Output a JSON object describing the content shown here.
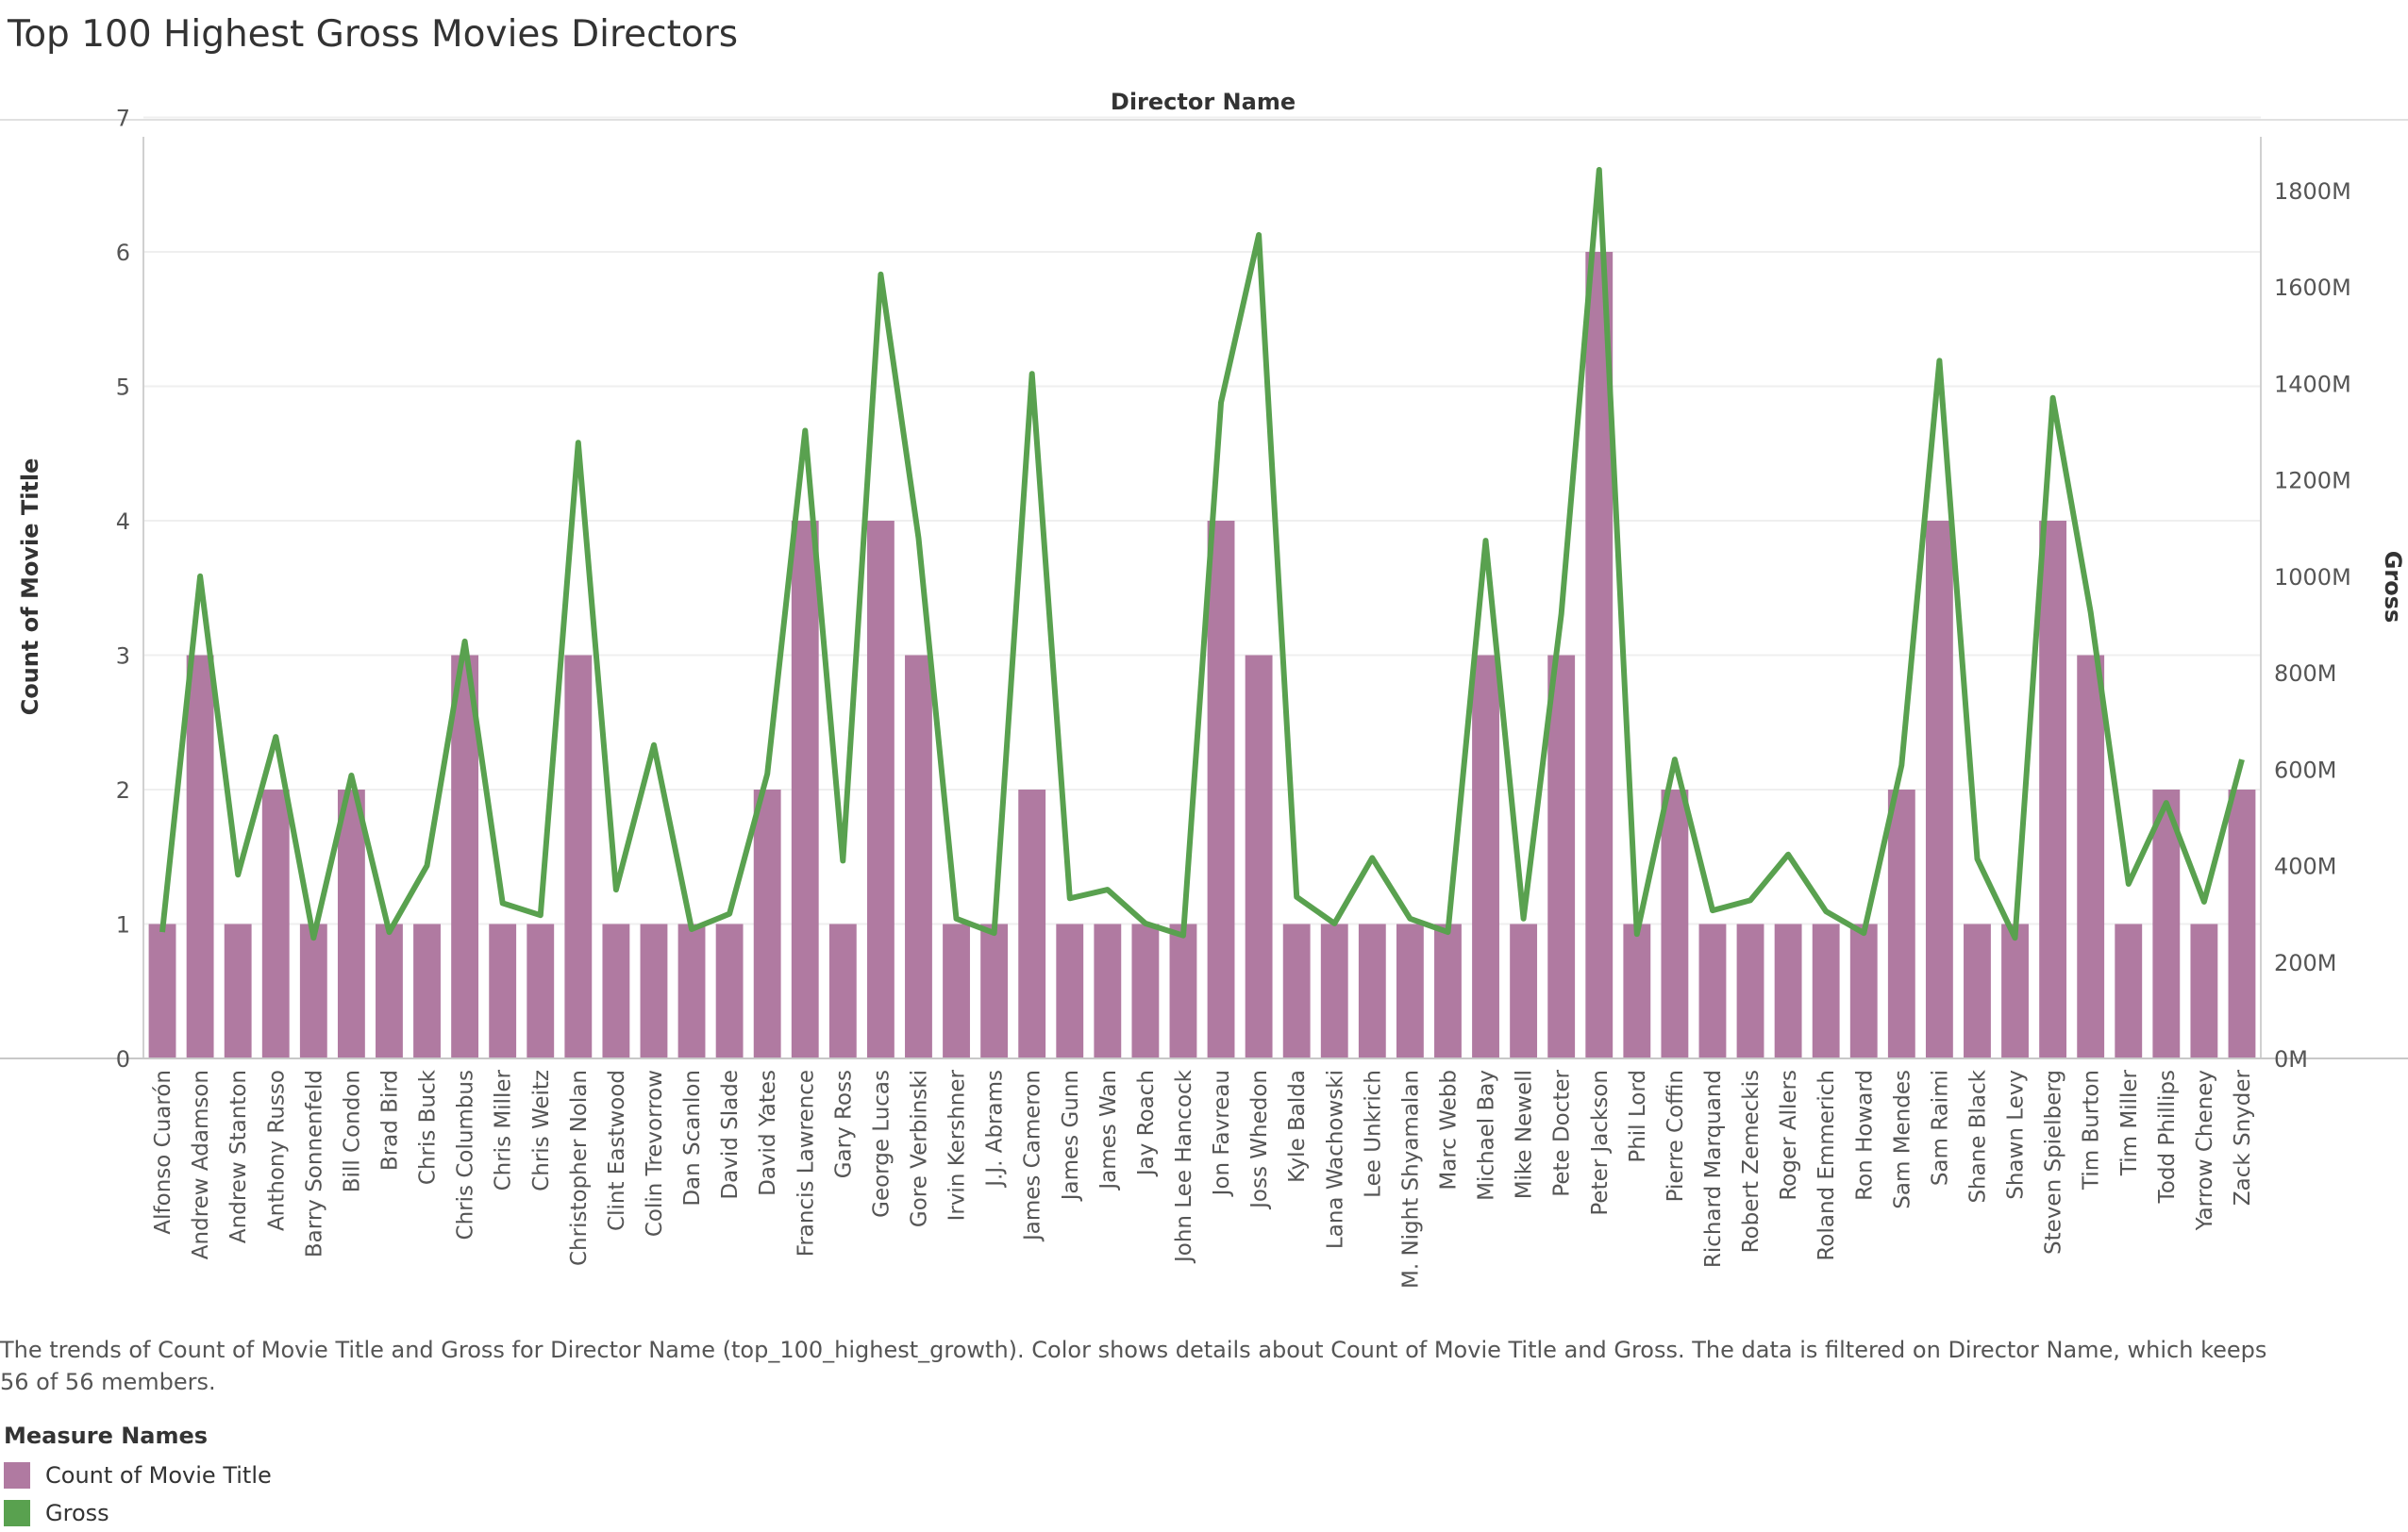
{
  "title": "Top 100 Highest Gross Movies Directors",
  "caption": "The trends of Count of Movie Title and Gross for Director Name (top_100_highest_growth).  Color shows details about Count of Movie Title and Gross. The data is filtered on Director Name, which keeps 56 of 56 members.",
  "legend": {
    "title": "Measure Names",
    "items": [
      {
        "label": "Count of Movie Title",
        "color": "#b07aa1"
      },
      {
        "label": "Gross",
        "color": "#59a14f"
      }
    ]
  },
  "chart_data": {
    "type": "bar",
    "title": "Top 100 Highest Gross Movies Directors",
    "xlabel": "Director Name",
    "ylabel": "Count of Movie Title",
    "y2label": "Gross",
    "ylim": [
      0,
      7
    ],
    "y2lim": [
      0,
      1900
    ],
    "yticks": [
      "0",
      "1",
      "2",
      "3",
      "4",
      "5",
      "6",
      "7"
    ],
    "y2ticks": [
      "0M",
      "200M",
      "400M",
      "600M",
      "800M",
      "1000M",
      "1200M",
      "1400M",
      "1600M",
      "1800M"
    ],
    "y2tick_values": [
      0,
      200,
      400,
      600,
      800,
      1000,
      1200,
      1400,
      1600,
      1800
    ],
    "grid": true,
    "legend_position": "bottom-left",
    "categories": [
      "Alfonso Cuarón",
      "Andrew Adamson",
      "Andrew Stanton",
      "Anthony Russo",
      "Barry Sonnenfeld",
      "Bill Condon",
      "Brad Bird",
      "Chris Buck",
      "Chris Columbus",
      "Chris Miller",
      "Chris Weitz",
      "Christopher Nolan",
      "Clint Eastwood",
      "Colin Trevorrow",
      "Dan Scanlon",
      "David Slade",
      "David Yates",
      "Francis Lawrence",
      "Gary Ross",
      "George Lucas",
      "Gore Verbinski",
      "Irvin Kershner",
      "J.J. Abrams",
      "James Cameron",
      "James Gunn",
      "James Wan",
      "Jay Roach",
      "John Lee Hancock",
      "Jon Favreau",
      "Joss Whedon",
      "Kyle Balda",
      "Lana Wachowski",
      "Lee Unkrich",
      "M. Night Shyamalan",
      "Marc Webb",
      "Michael Bay",
      "Mike Newell",
      "Pete Docter",
      "Peter Jackson",
      "Phil Lord",
      "Pierre Coffin",
      "Richard Marquand",
      "Robert Zemeckis",
      "Roger Allers",
      "Roland Emmerich",
      "Ron Howard",
      "Sam Mendes",
      "Sam Raimi",
      "Shane Black",
      "Shawn Levy",
      "Steven Spielberg",
      "Tim Burton",
      "Tim Miller",
      "Todd Phillips",
      "Yarrow Cheney",
      "Zack Snyder"
    ],
    "series": [
      {
        "name": "Count of Movie Title",
        "axis": "left",
        "type": "bar",
        "color": "#b07aa1",
        "values": [
          1,
          3,
          1,
          2,
          1,
          2,
          1,
          1,
          3,
          1,
          1,
          3,
          1,
          1,
          1,
          1,
          2,
          4,
          1,
          4,
          3,
          1,
          1,
          2,
          1,
          1,
          1,
          1,
          4,
          3,
          1,
          1,
          1,
          1,
          1,
          3,
          1,
          3,
          6,
          1,
          2,
          1,
          1,
          1,
          1,
          1,
          2,
          4,
          1,
          1,
          4,
          3,
          1,
          2,
          1,
          2
        ]
      },
      {
        "name": "Gross",
        "axis": "right",
        "type": "line",
        "color": "#59a14f",
        "values": [
          262,
          1000,
          381,
          667,
          250,
          587,
          262,
          400,
          865,
          322,
          297,
          1277,
          350,
          650,
          268,
          300,
          590,
          1302,
          410,
          1626,
          1079,
          290,
          260,
          1420,
          332,
          350,
          280,
          255,
          1360,
          1708,
          335,
          280,
          416,
          290,
          262,
          1074,
          290,
          922,
          1843,
          258,
          620,
          307,
          328,
          423,
          305,
          260,
          608,
          1447,
          414,
          250,
          1370,
          925,
          362,
          530,
          325,
          620
        ]
      }
    ]
  }
}
